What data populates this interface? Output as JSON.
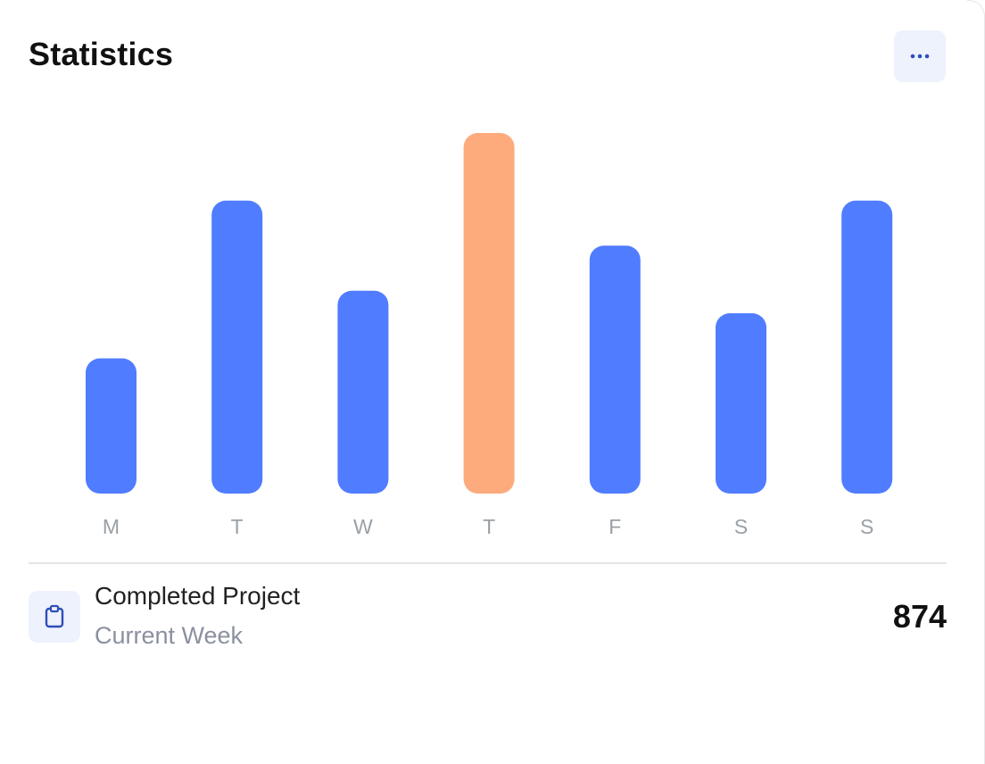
{
  "card": {
    "title": "Statistics",
    "menu_icon": "more-horizontal-icon"
  },
  "chart_data": {
    "type": "bar",
    "categories": [
      "M",
      "T",
      "W",
      "T",
      "F",
      "S",
      "S"
    ],
    "values": [
      3,
      6.5,
      4.5,
      8,
      5.5,
      4,
      6.5
    ],
    "ylim": [
      0,
      8
    ],
    "highlight_index": 3,
    "colors": {
      "bar": "#507cff",
      "highlight": "#fdab7c",
      "tick_label": "#9aa0a6"
    },
    "grid": false,
    "legend": "none"
  },
  "footer": {
    "icon": "clipboard-icon",
    "title": "Completed Project",
    "subtitle": "Current Week",
    "value": "874"
  }
}
